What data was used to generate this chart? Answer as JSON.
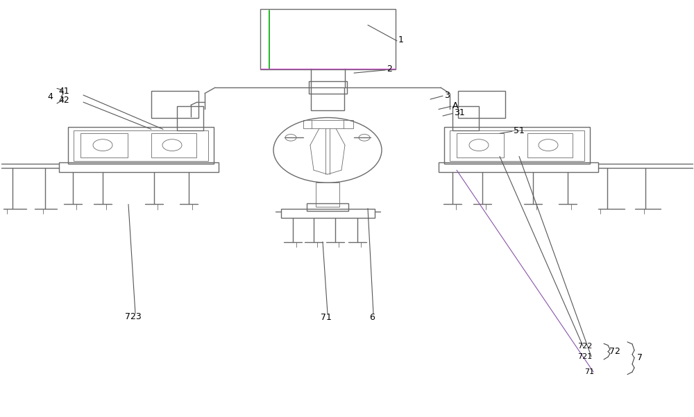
{
  "bg_color": "#ffffff",
  "line_color": "#6a6a6a",
  "line_width": 1.0,
  "thin_line": 0.6,
  "annotation_color": "#000000",
  "green_color": "#00aa00",
  "purple_color": "#8855aa",
  "fig_width": 10.0,
  "fig_height": 6.01,
  "dpi": 100
}
